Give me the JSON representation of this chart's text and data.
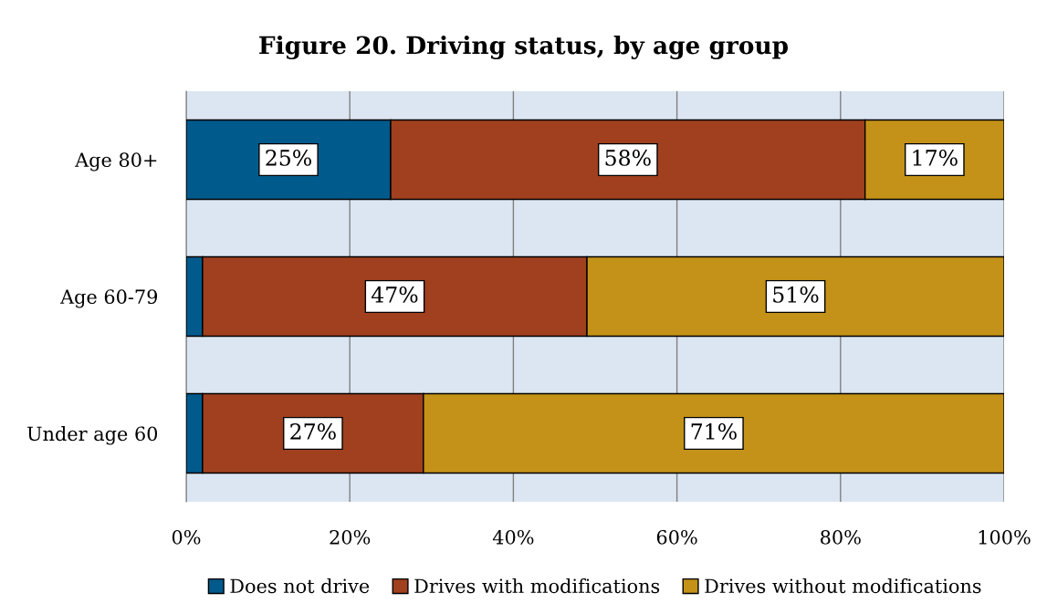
{
  "chart_data": {
    "type": "bar",
    "orientation": "horizontal",
    "stacked": true,
    "title": "Figure 20. Driving status, by age group",
    "categories": [
      "Age 80+",
      "Age 60-79",
      "Under age 60"
    ],
    "series": [
      {
        "name": "Does not drive",
        "color": "#005a8c",
        "values": [
          25,
          2,
          2
        ],
        "value_labels": [
          "25%",
          null,
          null
        ]
      },
      {
        "name": "Drives with modifications",
        "color": "#a0401f",
        "values": [
          58,
          47,
          27
        ],
        "value_labels": [
          "58%",
          "47%",
          "27%"
        ]
      },
      {
        "name": "Drives without modifications",
        "color": "#c49218",
        "values": [
          17,
          51,
          71
        ],
        "value_labels": [
          "17%",
          "51%",
          "71%"
        ]
      }
    ],
    "xlim": [
      0,
      100
    ],
    "xticks": [
      {
        "value": 0,
        "label": "0%"
      },
      {
        "value": 20,
        "label": "20%"
      },
      {
        "value": 40,
        "label": "40%"
      },
      {
        "value": 60,
        "label": "60%"
      },
      {
        "value": 80,
        "label": "80%"
      },
      {
        "value": 100,
        "label": "100%"
      }
    ],
    "grid": "x",
    "legend": "bottom"
  }
}
